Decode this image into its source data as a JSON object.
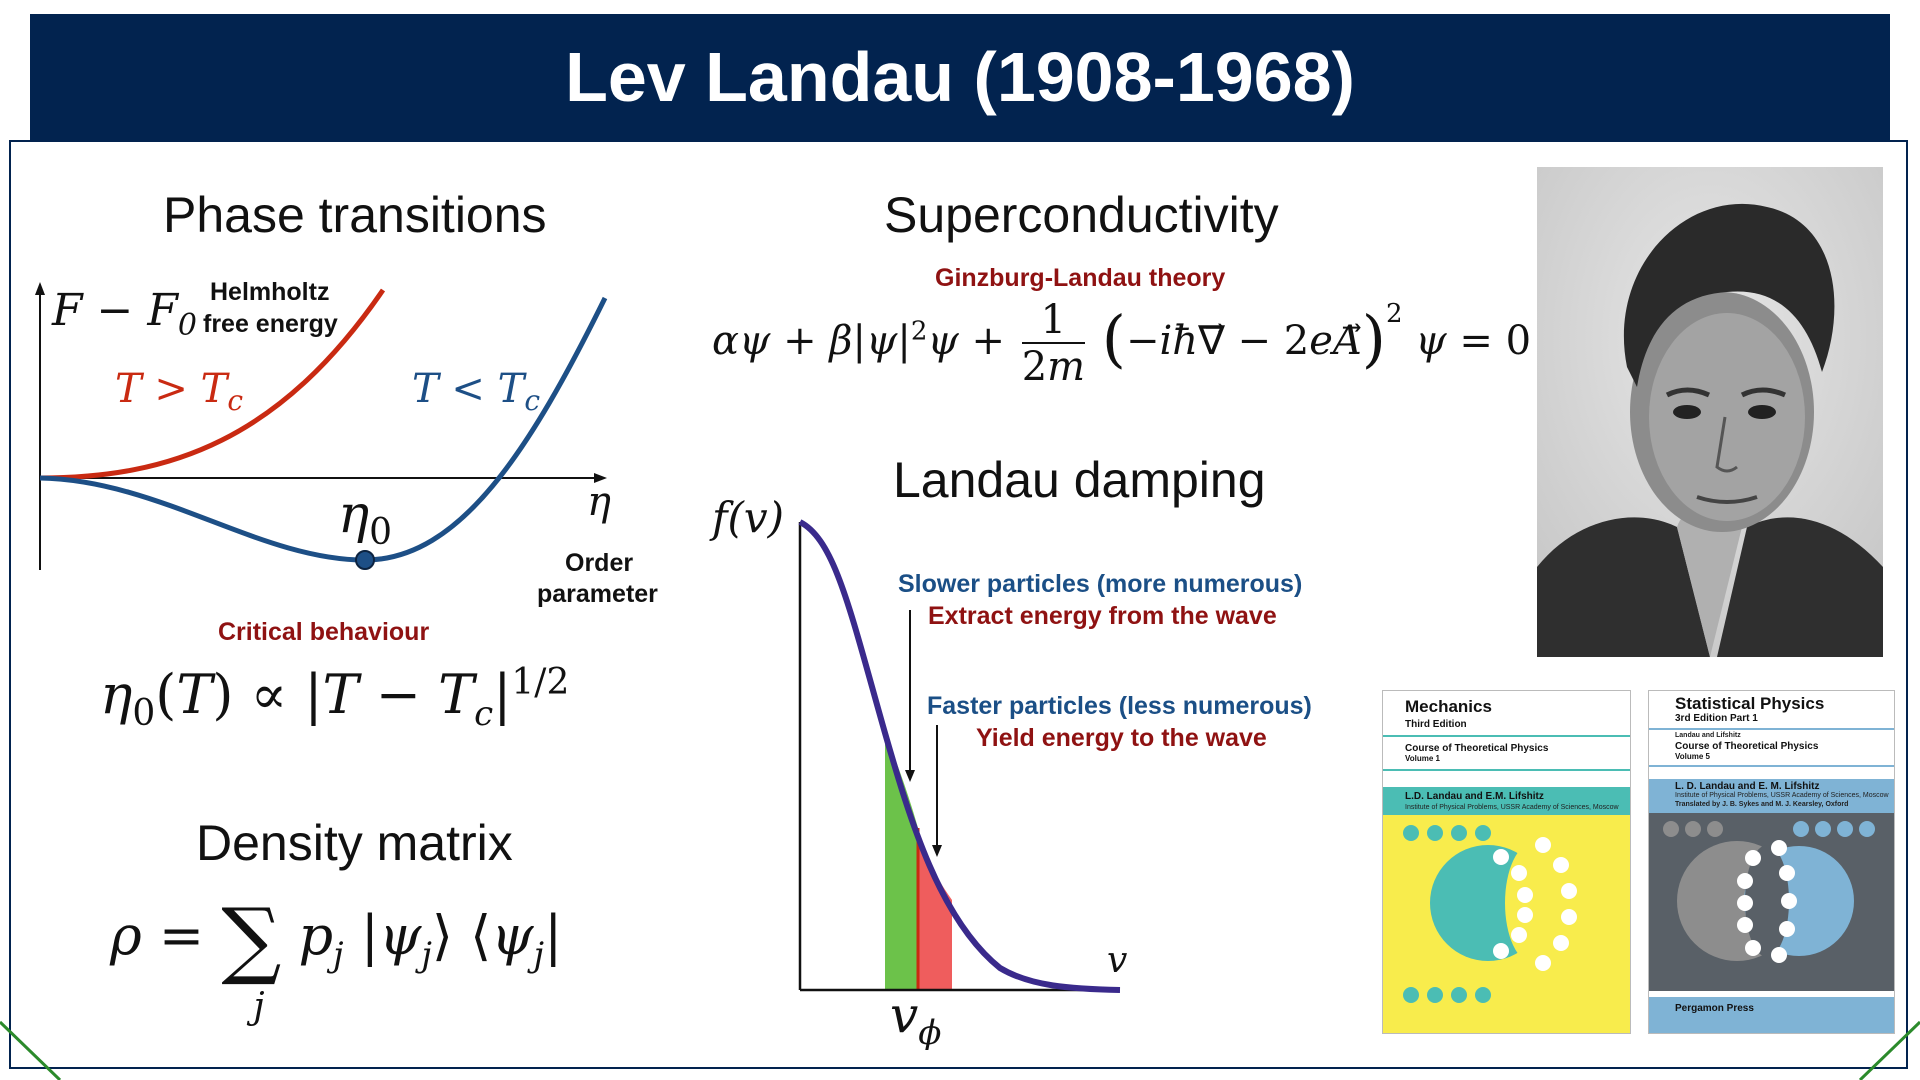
{
  "slide": {
    "title": "Lev Landau (1908-1968)",
    "colors": {
      "banner": "#02234f",
      "accent_red": "#8f1212",
      "accent_blue": "#1b4f86",
      "curve_red": "#c92a12",
      "curve_blue": "#1d4f86",
      "dist_curve": "#3a2a8c"
    }
  },
  "phase": {
    "heading": "Phase transitions",
    "helmholtz_line1": "Helmholtz",
    "helmholtz_line2": "free energy",
    "order_line1": "Order",
    "order_line2": "parameter",
    "critical_label": "Critical behaviour"
  },
  "density": {
    "heading": "Density matrix"
  },
  "superconductivity": {
    "heading": "Superconductivity",
    "theory_label": "Ginzburg-Landau theory"
  },
  "damping": {
    "heading": "Landau damping",
    "slower_line1": "Slower particles (more numerous)",
    "slower_line2": "Extract energy from the wave",
    "faster_line1": "Faster particles (less numerous)",
    "faster_line2": "Yield energy to the wave"
  },
  "photo": {
    "icon": "portrait-photo"
  },
  "books": [
    {
      "title": "Mechanics",
      "edition": "Third Edition",
      "series": "Course of Theoretical Physics",
      "volume": "Volume 1",
      "authors": "L.D. Landau and E.M. Lifshitz",
      "institute": "Institute of Physical Problems, USSR Academy of Sciences, Moscow",
      "colors": {
        "cover": "#f8ec4c",
        "band": "#4bbdb4"
      }
    },
    {
      "title": "Statistical Physics",
      "edition": "3rd Edition Part 1",
      "byline": "Landau and Lifshitz",
      "series": "Course of Theoretical Physics",
      "volume": "Volume 5",
      "authors": "L. D. Landau and E. M. Lifshitz",
      "institute": "Institute of Physical Problems, USSR Academy of Sciences, Moscow",
      "translator": "Translated by J. B. Sykes and M. J. Kearsley, Oxford",
      "publisher": "Pergamon Press",
      "colors": {
        "cover": "#596067",
        "band": "#7fb3d5"
      }
    }
  ]
}
